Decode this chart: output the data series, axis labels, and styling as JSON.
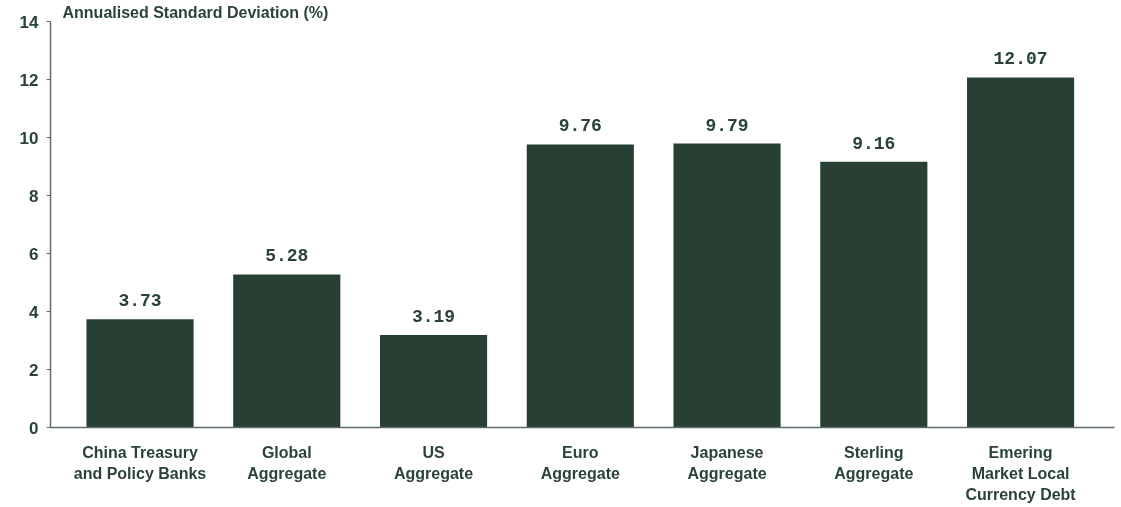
{
  "chart_data": {
    "type": "bar",
    "ylabel": "Annualised Standard Deviation (%)",
    "categories": [
      "China Treasury\nand Policy Banks",
      "Global\nAggregate",
      "US\nAggregate",
      "Euro\nAggregate",
      "Japanese\nAggregate",
      "Sterling\nAggregate",
      "Emering\nMarket Local\nCurrency Debt"
    ],
    "values": [
      3.73,
      5.28,
      3.19,
      9.76,
      9.79,
      9.16,
      12.07
    ],
    "color": "#283f33",
    "ylim": [
      0,
      14
    ],
    "yticks": [
      0,
      2,
      4,
      6,
      8,
      10,
      12,
      14
    ],
    "data_labels": true
  }
}
